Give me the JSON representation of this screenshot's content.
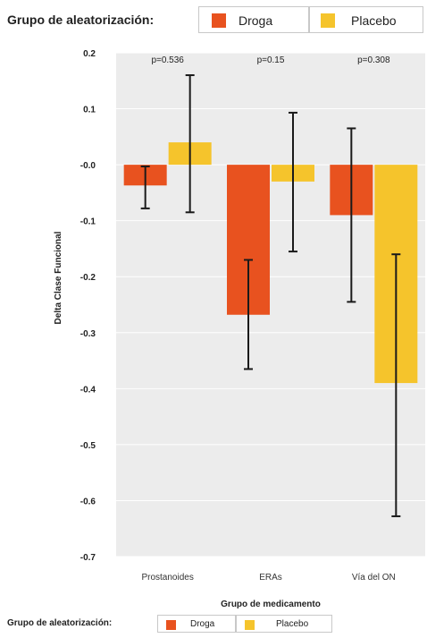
{
  "legend": {
    "title": "Grupo de aleatorización:",
    "items": [
      {
        "label": "Droga",
        "color": "#E8521F"
      },
      {
        "label": "Placebo",
        "color": "#F5C42C"
      }
    ]
  },
  "chart_data": {
    "type": "bar",
    "categories": [
      "Prostanoides",
      "ERAs",
      "Vía del ON"
    ],
    "series": [
      {
        "name": "Droga",
        "color": "#E8521F",
        "values": [
          -0.037,
          -0.268,
          -0.09
        ],
        "err_low": [
          -0.078,
          -0.365,
          -0.245
        ],
        "err_high": [
          -0.003,
          -0.17,
          0.065
        ]
      },
      {
        "name": "Placebo",
        "color": "#F5C42C",
        "values": [
          0.04,
          -0.03,
          -0.39
        ],
        "err_low": [
          -0.085,
          -0.155,
          -0.628
        ],
        "err_high": [
          0.16,
          0.093,
          -0.16
        ]
      }
    ],
    "p_values": [
      "p=0.536",
      "p=0.15",
      "p=0.308"
    ],
    "xlabel": "Grupo de medicamento",
    "ylabel": "Delta Clase Funcional",
    "ylim": [
      -0.7,
      0.2
    ],
    "yticks": [
      "0.2",
      "0.1",
      "-0.0",
      "-0.1",
      "-0.2",
      "-0.3",
      "-0.4",
      "-0.5",
      "-0.6",
      "-0.7"
    ],
    "ytick_values": [
      0.2,
      0.1,
      0,
      -0.1,
      -0.2,
      -0.3,
      -0.4,
      -0.5,
      -0.6,
      -0.7
    ],
    "grid": true,
    "legend_position": "top"
  }
}
